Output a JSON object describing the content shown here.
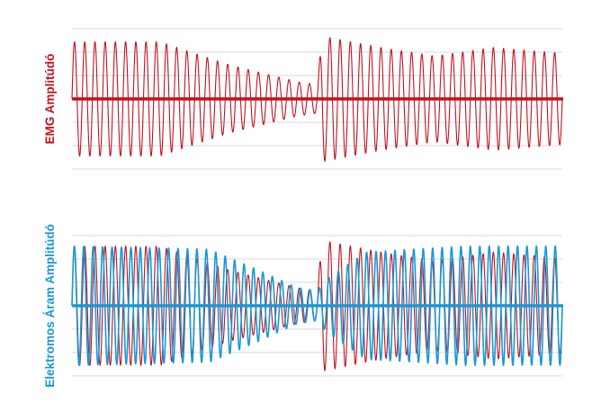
{
  "chart_data": [
    {
      "type": "line",
      "title": "",
      "xlabel": "",
      "ylabel": "EMG Amplitúdó",
      "grid": true,
      "ylim": [
        -1.1,
        1.1
      ],
      "axis_color": "#c1121f",
      "series": [
        {
          "name": "",
          "color": "#c1121f",
          "x_range": [
            0,
            1
          ],
          "waveform": "amplitude-modulated sine",
          "cycles": 48,
          "envelope": [
            [
              0.0,
              1.0
            ],
            [
              0.18,
              1.0
            ],
            [
              0.32,
              0.6
            ],
            [
              0.46,
              0.3
            ],
            [
              0.5,
              0.25
            ],
            [
              0.51,
              1.1
            ],
            [
              0.63,
              0.9
            ],
            [
              0.74,
              0.75
            ],
            [
              0.86,
              0.9
            ],
            [
              1.0,
              0.8
            ]
          ]
        }
      ]
    },
    {
      "type": "line",
      "title": "",
      "xlabel": "",
      "ylabel": "Elektromos Áram Amplitúdó",
      "grid": true,
      "ylim": [
        -1.1,
        1.1
      ],
      "axis_color": "#1b97d4",
      "series": [
        {
          "name": "",
          "color": "#c1121f",
          "x_range": [
            0,
            1
          ],
          "waveform": "amplitude-modulated sine",
          "cycles": 48,
          "envelope": [
            [
              0.0,
              1.0
            ],
            [
              0.18,
              1.0
            ],
            [
              0.32,
              0.6
            ],
            [
              0.46,
              0.3
            ],
            [
              0.5,
              0.25
            ],
            [
              0.51,
              1.1
            ],
            [
              0.63,
              0.9
            ],
            [
              0.74,
              0.75
            ],
            [
              0.86,
              0.9
            ],
            [
              1.0,
              0.8
            ]
          ]
        },
        {
          "name": "",
          "color": "#1b97d4",
          "x_range": [
            0,
            1
          ],
          "waveform": "amplitude-modulated sine",
          "cycles": 52,
          "envelope": [
            [
              0.0,
              1.0
            ],
            [
              0.28,
              0.95
            ],
            [
              0.38,
              0.6
            ],
            [
              0.46,
              0.3
            ],
            [
              0.5,
              0.25
            ],
            [
              0.52,
              0.45
            ],
            [
              0.6,
              0.9
            ],
            [
              0.8,
              1.0
            ],
            [
              1.0,
              1.0
            ]
          ]
        }
      ]
    }
  ]
}
